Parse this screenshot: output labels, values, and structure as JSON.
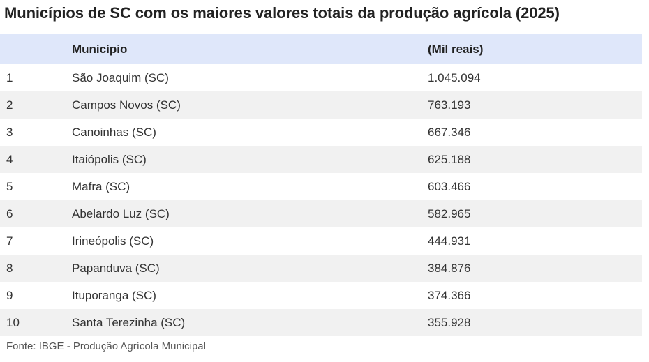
{
  "title": "Municípios de SC com os maiores valores totais da produção agrícola (2025)",
  "source": "Fonte: IBGE - Produção Agrícola Municipal",
  "colors": {
    "header_bg": "#dfe7fa",
    "stripe_bg": "#f1f1f1",
    "text": "#333333"
  },
  "chart_data": {
    "type": "table",
    "title": "Municípios de SC com os maiores valores totais da produção agrícola (2025)",
    "columns": [
      "",
      "Município",
      "(Mil reais)"
    ],
    "rows": [
      {
        "rank": "1",
        "municipio": "São Joaquim (SC)",
        "valor": "1.045.094"
      },
      {
        "rank": "2",
        "municipio": "Campos Novos (SC)",
        "valor": "763.193"
      },
      {
        "rank": "3",
        "municipio": "Canoinhas (SC)",
        "valor": "667.346"
      },
      {
        "rank": "4",
        "municipio": "Itaiópolis (SC)",
        "valor": "625.188"
      },
      {
        "rank": "5",
        "municipio": "Mafra (SC)",
        "valor": "603.466"
      },
      {
        "rank": "6",
        "municipio": "Abelardo Luz (SC)",
        "valor": "582.965"
      },
      {
        "rank": "7",
        "municipio": "Irineópolis (SC)",
        "valor": "444.931"
      },
      {
        "rank": "8",
        "municipio": "Papanduva (SC)",
        "valor": "384.876"
      },
      {
        "rank": "9",
        "municipio": "Ituporanga (SC)",
        "valor": "374.366"
      },
      {
        "rank": "10",
        "municipio": "Santa Terezinha (SC)",
        "valor": "355.928"
      }
    ]
  }
}
